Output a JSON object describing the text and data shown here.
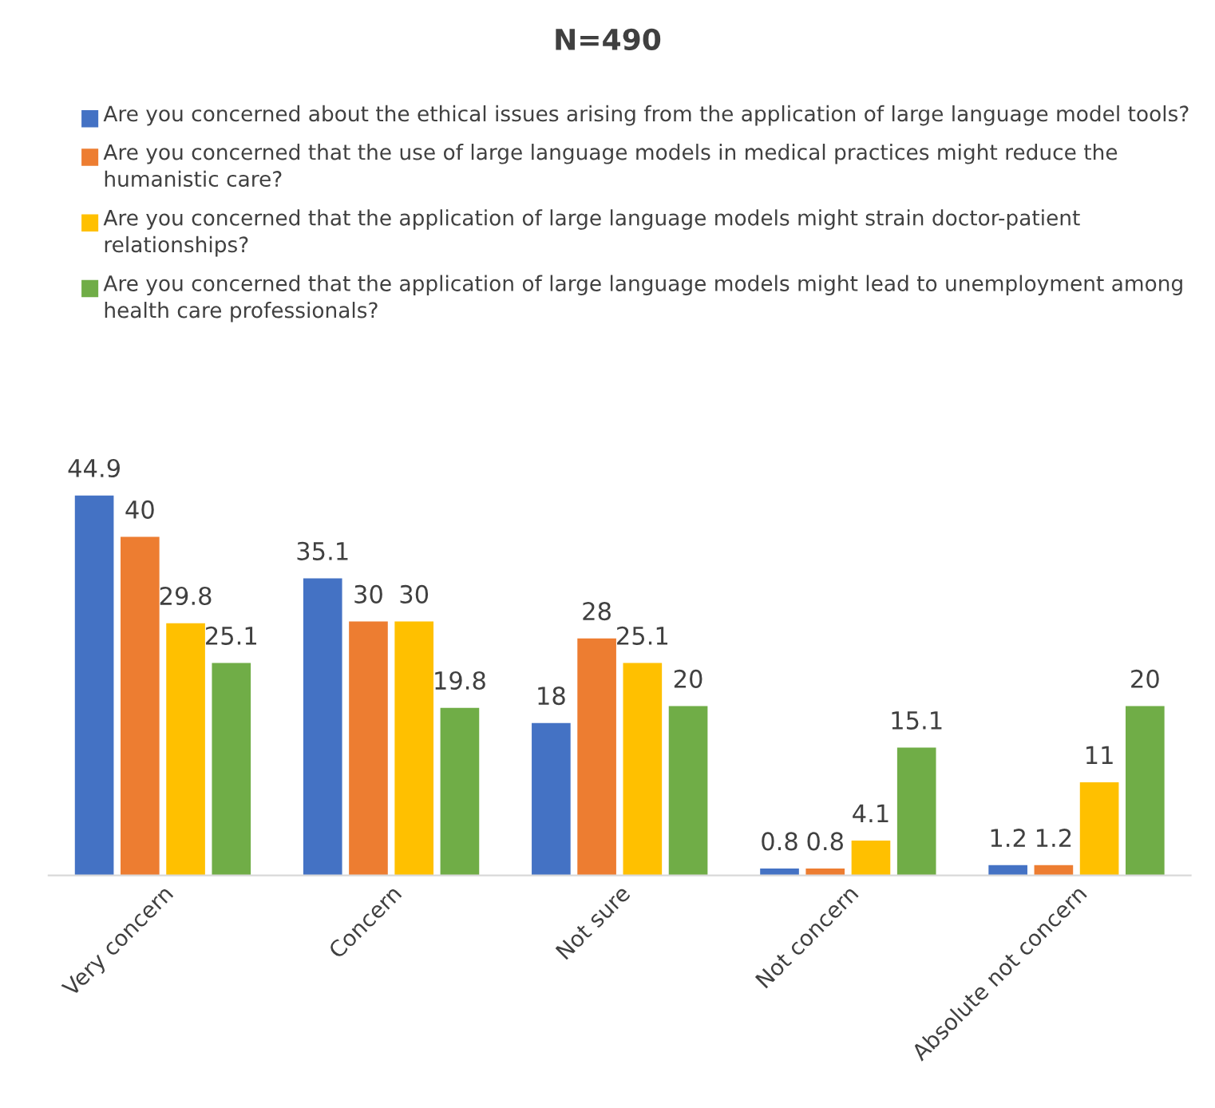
{
  "chart_data": {
    "type": "bar",
    "title": "N=490",
    "categories": [
      "Very concern",
      "Concern",
      "Not sure",
      "Not concern",
      "Absolute not concern"
    ],
    "series": [
      {
        "name": "Are you concerned about the ethical issues arising from the application of large language model tools?",
        "color": "#4472c4",
        "values": [
          44.9,
          35.1,
          18,
          0.8,
          1.2
        ]
      },
      {
        "name": "Are you concerned that the use of large language models in medical practices might reduce the humanistic care?",
        "color": "#ed7d31",
        "values": [
          40,
          30,
          28,
          0.8,
          1.2
        ]
      },
      {
        "name": "Are you concerned that the application of large language models might strain doctor-patient relationships?",
        "color": "#ffc000",
        "values": [
          29.8,
          30,
          25.1,
          4.1,
          11
        ]
      },
      {
        "name": "Are you concerned that the application of large language models might lead to unemployment among health care professionals?",
        "color": "#70ad47",
        "values": [
          25.1,
          19.8,
          20,
          15.1,
          20
        ]
      }
    ],
    "data_labels": true,
    "legend": "top",
    "tick_labels": "x"
  }
}
